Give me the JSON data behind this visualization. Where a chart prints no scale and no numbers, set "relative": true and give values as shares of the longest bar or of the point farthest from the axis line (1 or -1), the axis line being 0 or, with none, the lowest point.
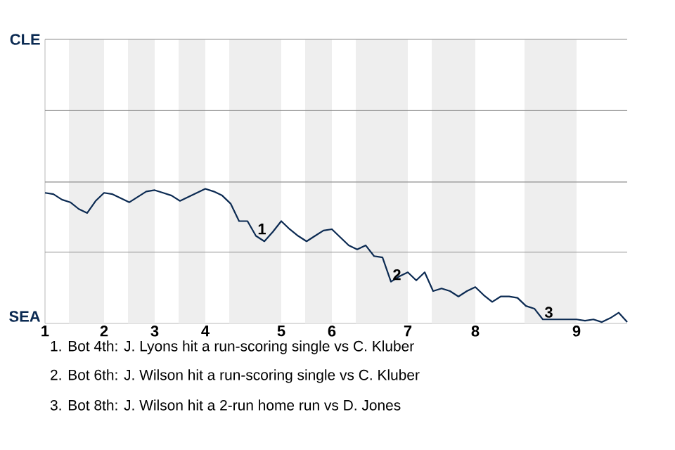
{
  "chart_data": {
    "type": "line",
    "relative": true,
    "categories": [
      "1",
      null,
      null,
      null,
      null,
      null,
      null,
      "2",
      null,
      null,
      null,
      null,
      null,
      "3",
      null,
      null,
      null,
      null,
      null,
      "4",
      null,
      null,
      null,
      null,
      null,
      null,
      null,
      null,
      "5",
      null,
      null,
      null,
      null,
      null,
      "6",
      null,
      null,
      null,
      null,
      null,
      null,
      null,
      null,
      "7",
      null,
      null,
      null,
      null,
      null,
      null,
      null,
      "8",
      null,
      null,
      null,
      null,
      null,
      null,
      null,
      null,
      null,
      null,
      null,
      "9",
      null,
      null,
      null,
      null,
      null,
      null
    ],
    "ref_lines": [
      {
        "axis": "y",
        "value": 0.53,
        "color": "#8c8c8c"
      },
      {
        "axis": "y",
        "value": 1.05,
        "color": "#8c8c8c"
      },
      {
        "axis": "y",
        "value": 1.58,
        "color": "#8c8c8c"
      },
      {
        "axis": "y",
        "value": 2.11,
        "color": "#8c8c8c"
      }
    ],
    "series": [
      {
        "color": "#0b2a52",
        "values": [
          0.97,
          0.96,
          0.92,
          0.9,
          0.85,
          0.82,
          0.91,
          0.97,
          0.96,
          0.93,
          0.9,
          0.94,
          0.98,
          0.99,
          0.97,
          0.95,
          0.91,
          0.94,
          0.97,
          1,
          0.98,
          0.95,
          0.89,
          0.76,
          0.76,
          0.65,
          0.61,
          0.68,
          0.76,
          0.7,
          0.65,
          0.61,
          0.65,
          0.69,
          0.7,
          0.64,
          0.58,
          0.55,
          0.58,
          0.5,
          0.49,
          0.31,
          0.35,
          0.38,
          0.32,
          0.38,
          0.24,
          0.26,
          0.24,
          0.2,
          0.24,
          0.27,
          0.21,
          0.16,
          0.2,
          0.2,
          0.19,
          0.13,
          0.11,
          0.03,
          0.03,
          0.03,
          0.03,
          0.03,
          0.02,
          0.03,
          0.01,
          0.04,
          0.08,
          0.01
        ]
      }
    ],
    "annotations": [
      "CLE",
      "SEA",
      {
        "text": "1",
        "y": 0.65
      },
      {
        "text": "2",
        "y": 0.31
      },
      {
        "text": "3",
        "y": 0.03
      },
      "1. Bot 4th: J. Lyons hit a run-scoring single vs C. Kluber",
      "2. Bot 6th: J. Wilson hit a run-scoring single vs C. Kluber",
      "3. Bot 8th: J. Wilson hit a 2-run home run vs D. Jones"
    ]
  }
}
